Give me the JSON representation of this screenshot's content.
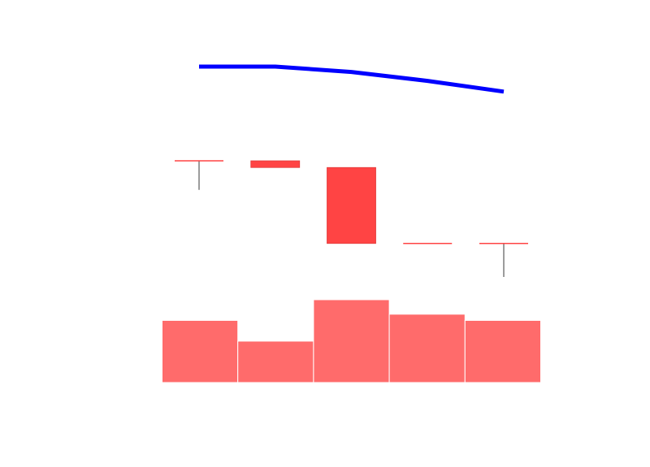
{
  "chart_data": {
    "type": "candlestick",
    "title": "",
    "xlabel": "",
    "ylabel": "",
    "grid": false,
    "legend": "none",
    "x": [
      1,
      2,
      3,
      4,
      5
    ],
    "ohlc": [
      {
        "open": 10.0,
        "high": 10.0,
        "low": 8.7,
        "close": 10.0
      },
      {
        "open": 10.0,
        "high": 10.0,
        "low": 9.7,
        "close": 9.7
      },
      {
        "open": 9.7,
        "high": 9.7,
        "low": 6.3,
        "close": 6.3
      },
      {
        "open": 6.3,
        "high": 6.3,
        "low": 6.3,
        "close": 6.3
      },
      {
        "open": 6.3,
        "high": 6.3,
        "low": 4.8,
        "close": 6.3
      }
    ],
    "moving_average": [
      6,
      6,
      5.7,
      5.2,
      4.6
    ],
    "volume": [
      3,
      2,
      4,
      3.3,
      3
    ],
    "colors": {
      "down_candle": "#ff4444",
      "wick": "#666666",
      "moving_average_line": "#0000ff",
      "volume_bar": "#ff6b6b"
    }
  }
}
